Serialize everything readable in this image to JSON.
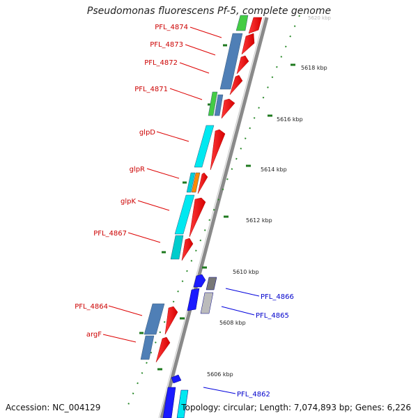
{
  "title": "Pseudomonas fluorescens Pf-5, complete genome",
  "accession": "Accession: NC_004129",
  "summary": "Topology: circular; Length: 7,074,893 bp; Genes: 6,226",
  "colors": {
    "backbone": "#808080",
    "forward": "#ff0000",
    "reverse_gene": "#0000ff",
    "label_forward": "#cc0000",
    "label_reverse": "#0000cc",
    "tick": "#2a8a2a"
  },
  "scale_labels": [
    {
      "name": "tick-5618",
      "text": "5618 kbp"
    },
    {
      "name": "tick-5616",
      "text": "5616 kbp"
    },
    {
      "name": "tick-5614",
      "text": "5614 kbp"
    },
    {
      "name": "tick-5612",
      "text": "5612 kbp"
    },
    {
      "name": "tick-5610",
      "text": "5610 kbp"
    },
    {
      "name": "tick-5608",
      "text": "5608 kbp"
    },
    {
      "name": "tick-5606",
      "text": "5606 kbp"
    },
    {
      "name": "tick-5620",
      "text": "5620 kbp"
    }
  ],
  "genes_left": [
    {
      "name": "pfl-4874",
      "text": "PFL_4874"
    },
    {
      "name": "pfl-4873",
      "text": "PFL_4873"
    },
    {
      "name": "pfl-4872",
      "text": "PFL_4872"
    },
    {
      "name": "pfl-4871",
      "text": "PFL_4871"
    },
    {
      "name": "glpd",
      "text": "glpD"
    },
    {
      "name": "glpr",
      "text": "glpR"
    },
    {
      "name": "glpk",
      "text": "glpK"
    },
    {
      "name": "pfl-4867",
      "text": "PFL_4867"
    },
    {
      "name": "pfl-4864",
      "text": "PFL_4864"
    },
    {
      "name": "argf",
      "text": "argF"
    }
  ],
  "genes_right": [
    {
      "name": "pfl-4866",
      "text": "PFL_4866"
    },
    {
      "name": "pfl-4865",
      "text": "PFL_4865"
    },
    {
      "name": "pfl-4862",
      "text": "PFL_4862"
    }
  ]
}
